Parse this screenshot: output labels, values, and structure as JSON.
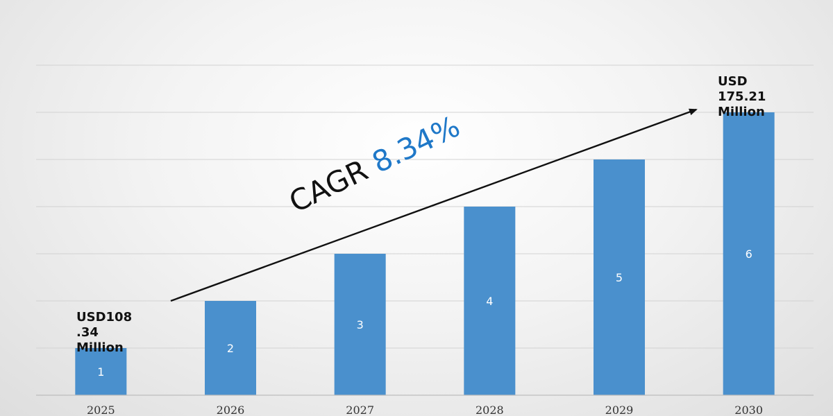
{
  "chart_data": {
    "type": "bar",
    "categories": [
      "2025",
      "2026",
      "2027",
      "2028",
      "2029",
      "2030"
    ],
    "values": [
      1,
      2,
      3,
      4,
      5,
      6
    ],
    "data_labels": [
      "1",
      "2",
      "3",
      "4",
      "5",
      "6"
    ],
    "title": "",
    "xlabel": "",
    "ylabel": "",
    "ylim": [
      0,
      7
    ],
    "grid": true,
    "legend": "none",
    "bar_color": "#4a90cd",
    "annotations": {
      "start_value": "USD108\n.34\nMillion",
      "end_value": "USD\n175.21\nMillion",
      "cagr_label": "CAGR",
      "cagr_value": "8.34%",
      "cagr_color": "#1f78c8",
      "trend_arrow": "arrow-up-right-icon"
    }
  }
}
